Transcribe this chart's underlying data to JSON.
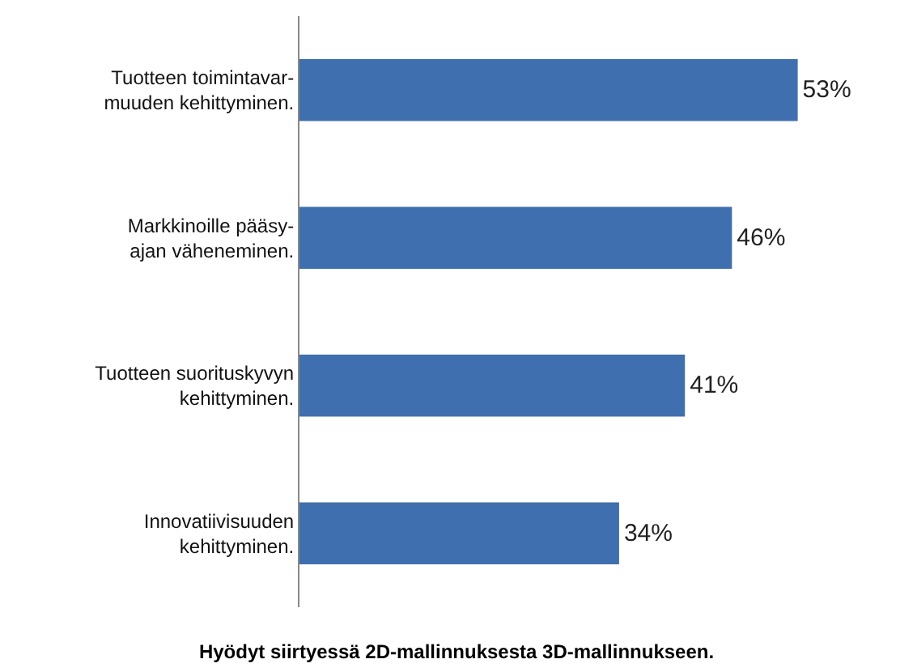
{
  "chart_data": {
    "type": "bar",
    "orientation": "horizontal",
    "title": "Hyödyt siirtyessä 2D-mallinnuksesta 3D-mallinnukseen.",
    "categories": [
      "Tuotteen toimintavar-\nmuuden kehittyminen.",
      "Markkinoille pääsy-\najan väheneminen.",
      "Tuotteen suorituskyvyn\nkehittyminen.",
      "Innovatiivisuuden\nkehittyminen."
    ],
    "values": [
      53,
      46,
      41,
      34
    ],
    "value_labels": [
      "53%",
      "46%",
      "41%",
      "34%"
    ],
    "color": "#3f6fae"
  }
}
